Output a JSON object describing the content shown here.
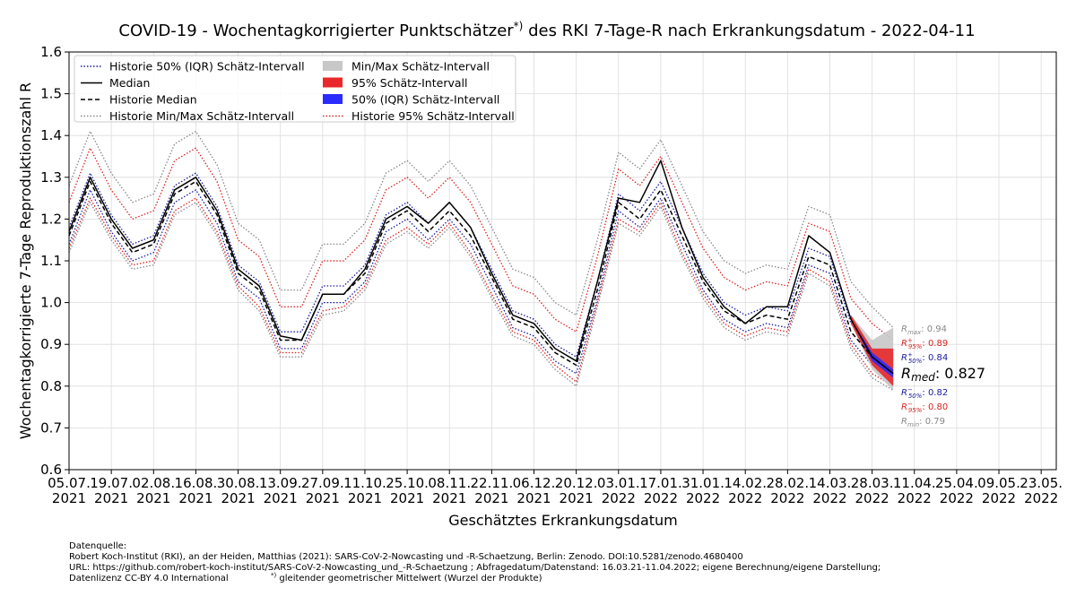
{
  "chart_data": {
    "type": "line",
    "title": "COVID-19 - Wochentagkorrigierter Punktschätzer",
    "title_sup": "*)",
    "title_rest": " des RKI 7-Tage-R nach Erkrankungsdatum - 2022-04-11",
    "xlabel": "Geschätztes Erkrankungsdatum",
    "ylabel": "Wochentagkorrigierte 7-Tage Reproduktionszahl R",
    "xlim": [
      "2021-07-05",
      "2022-05-28"
    ],
    "ylim": [
      0.6,
      1.6
    ],
    "yticks": [
      0.6,
      0.7,
      0.8,
      0.9,
      {
        "value": 1,
        "label": "1.0"
      },
      1.1,
      1.2,
      1.3,
      1.4,
      1.5,
      1.6
    ],
    "xticks": [
      {
        "value": "2021-07-05",
        "label": "05.07.\n2021"
      },
      {
        "value": "2021-07-19",
        "label": "19.07.\n2021"
      },
      {
        "value": "2021-08-02",
        "label": "02.08.\n2021"
      },
      {
        "value": "2021-08-16",
        "label": "16.08.\n2021"
      },
      {
        "value": "2021-08-30",
        "label": "30.08.\n2021"
      },
      {
        "value": "2021-09-13",
        "label": "13.09.\n2021"
      },
      {
        "value": "2021-09-27",
        "label": "27.09.\n2021"
      },
      {
        "value": "2021-10-11",
        "label": "11.10.\n2021"
      },
      {
        "value": "2021-10-25",
        "label": "25.10.\n2021"
      },
      {
        "value": "2021-11-08",
        "label": "08.11.\n2021"
      },
      {
        "value": "2021-11-22",
        "label": "22.11.\n2021"
      },
      {
        "value": "2021-12-06",
        "label": "06.12.\n2021"
      },
      {
        "value": "2021-12-20",
        "label": "20.12.\n2021"
      },
      {
        "value": "2022-01-03",
        "label": "03.01.\n2022"
      },
      {
        "value": "2022-01-17",
        "label": "17.01.\n2022"
      },
      {
        "value": "2022-01-31",
        "label": "31.01.\n2022"
      },
      {
        "value": "2022-02-14",
        "label": "14.02.\n2022"
      },
      {
        "value": "2022-02-28",
        "label": "28.02.\n2022"
      },
      {
        "value": "2022-03-14",
        "label": "14.03.\n2022"
      },
      {
        "value": "2022-03-28",
        "label": "28.03.\n2022"
      },
      {
        "value": "2022-04-11",
        "label": "11.04.\n2022"
      },
      {
        "value": "2022-04-25",
        "label": "25.04.\n2022"
      },
      {
        "value": "2022-05-09",
        "label": "09.05.\n2022"
      },
      {
        "value": "2022-05-23",
        "label": "23.05.\n2022"
      }
    ],
    "grid": true,
    "x": [
      "2021-07-05",
      "2021-07-12",
      "2021-07-19",
      "2021-07-26",
      "2021-08-02",
      "2021-08-09",
      "2021-08-16",
      "2021-08-23",
      "2021-08-30",
      "2021-09-06",
      "2021-09-13",
      "2021-09-20",
      "2021-09-27",
      "2021-10-04",
      "2021-10-11",
      "2021-10-18",
      "2021-10-25",
      "2021-11-01",
      "2021-11-08",
      "2021-11-15",
      "2021-11-22",
      "2021-11-29",
      "2021-12-06",
      "2021-12-13",
      "2021-12-20",
      "2021-12-27",
      "2022-01-03",
      "2022-01-10",
      "2022-01-17",
      "2022-01-24",
      "2022-01-31",
      "2022-02-07",
      "2022-02-14",
      "2022-02-21",
      "2022-02-28",
      "2022-03-07",
      "2022-03-14",
      "2022-03-21",
      "2022-03-28",
      "2022-04-04"
    ],
    "series": [
      {
        "name": "Historie 50% (IQR) Schätz-Intervall",
        "kind": "interval",
        "color": "#1a1aa0",
        "dash": "1.5 2",
        "lower": [
          1.14,
          1.27,
          1.17,
          1.1,
          1.12,
          1.24,
          1.27,
          1.19,
          1.05,
          1.01,
          0.89,
          0.89,
          1.0,
          1.0,
          1.05,
          1.17,
          1.2,
          1.15,
          1.2,
          1.14,
          1.04,
          0.94,
          0.92,
          0.86,
          0.83,
          1.01,
          1.22,
          1.18,
          1.25,
          1.14,
          1.03,
          0.96,
          0.93,
          0.95,
          0.94,
          1.09,
          1.07,
          0.91,
          0.85,
          0.81
        ],
        "upper": [
          1.18,
          1.31,
          1.21,
          1.14,
          1.16,
          1.28,
          1.31,
          1.23,
          1.09,
          1.05,
          0.93,
          0.93,
          1.04,
          1.04,
          1.09,
          1.21,
          1.24,
          1.19,
          1.24,
          1.18,
          1.08,
          0.98,
          0.96,
          0.9,
          0.87,
          1.05,
          1.26,
          1.22,
          1.29,
          1.18,
          1.07,
          1.0,
          0.97,
          0.99,
          0.98,
          1.13,
          1.11,
          0.95,
          0.89,
          0.85
        ]
      },
      {
        "name": "Median",
        "kind": "line",
        "color": "#000000",
        "dash": "none",
        "values": [
          1.17,
          1.3,
          1.2,
          1.13,
          1.15,
          1.27,
          1.3,
          1.22,
          1.08,
          1.04,
          0.92,
          0.91,
          1.02,
          1.02,
          1.08,
          1.2,
          1.23,
          1.19,
          1.24,
          1.18,
          1.07,
          0.97,
          0.95,
          0.89,
          0.86,
          1.05,
          1.25,
          1.24,
          1.34,
          1.18,
          1.06,
          0.99,
          0.95,
          0.99,
          0.99,
          1.16,
          1.12,
          0.96,
          0.87,
          0.83
        ]
      },
      {
        "name": "Historie Median",
        "kind": "line",
        "color": "#000000",
        "dash": "5 3",
        "values": [
          1.16,
          1.29,
          1.19,
          1.12,
          1.14,
          1.26,
          1.29,
          1.21,
          1.07,
          1.03,
          0.91,
          0.91,
          1.02,
          1.02,
          1.07,
          1.19,
          1.22,
          1.17,
          1.22,
          1.16,
          1.06,
          0.96,
          0.94,
          0.88,
          0.85,
          1.03,
          1.24,
          1.2,
          1.27,
          1.16,
          1.05,
          0.98,
          0.95,
          0.97,
          0.96,
          1.11,
          1.09,
          0.93,
          0.87,
          0.83
        ]
      },
      {
        "name": "Historie Min/Max Schätz-Intervall",
        "kind": "interval",
        "color": "#888888",
        "dash": "1.5 2",
        "lower": [
          1.12,
          1.24,
          1.15,
          1.08,
          1.09,
          1.21,
          1.24,
          1.16,
          1.03,
          0.98,
          0.87,
          0.87,
          0.97,
          0.98,
          1.03,
          1.14,
          1.17,
          1.13,
          1.18,
          1.11,
          1.01,
          0.92,
          0.9,
          0.84,
          0.8,
          0.99,
          1.19,
          1.16,
          1.23,
          1.11,
          1.01,
          0.94,
          0.91,
          0.93,
          0.92,
          1.07,
          1.04,
          0.89,
          0.82,
          0.79
        ],
        "upper": [
          1.28,
          1.41,
          1.31,
          1.24,
          1.26,
          1.38,
          1.41,
          1.33,
          1.19,
          1.15,
          1.03,
          1.03,
          1.14,
          1.14,
          1.19,
          1.31,
          1.34,
          1.29,
          1.34,
          1.28,
          1.18,
          1.08,
          1.06,
          1.0,
          0.97,
          1.15,
          1.36,
          1.32,
          1.39,
          1.28,
          1.17,
          1.1,
          1.07,
          1.09,
          1.08,
          1.23,
          1.21,
          1.05,
          0.99,
          0.94
        ]
      },
      {
        "name": "Min/Max Schätz-Intervall",
        "kind": "band",
        "color": "#c8c8c8",
        "x": [
          "2022-03-21",
          "2022-03-28",
          "2022-04-04"
        ],
        "lower": [
          0.95,
          0.84,
          0.79
        ],
        "upper": [
          0.97,
          0.91,
          0.94
        ]
      },
      {
        "name": "95% Schätz-Intervall",
        "kind": "band",
        "color": "#e8282a",
        "x": [
          "2022-03-21",
          "2022-03-28",
          "2022-04-04"
        ],
        "lower": [
          0.95,
          0.85,
          0.8
        ],
        "upper": [
          0.97,
          0.89,
          0.89
        ]
      },
      {
        "name": "50% (IQR) Schätz-Intervall",
        "kind": "band",
        "color": "#2b2bff",
        "x": [
          "2022-03-21",
          "2022-03-28",
          "2022-04-04"
        ],
        "lower": [
          0.96,
          0.86,
          0.82
        ],
        "upper": [
          0.96,
          0.88,
          0.84
        ]
      },
      {
        "name": "Historie 95% Schätz-Intervall",
        "kind": "interval",
        "color": "#dd2222",
        "dash": "1.5 2",
        "lower": [
          1.13,
          1.25,
          1.16,
          1.09,
          1.1,
          1.22,
          1.25,
          1.17,
          1.04,
          0.99,
          0.88,
          0.88,
          0.98,
          0.99,
          1.04,
          1.15,
          1.18,
          1.14,
          1.19,
          1.12,
          1.02,
          0.93,
          0.91,
          0.85,
          0.81,
          1.0,
          1.2,
          1.17,
          1.24,
          1.12,
          1.02,
          0.95,
          0.92,
          0.94,
          0.93,
          1.08,
          1.05,
          0.9,
          0.83,
          0.8
        ],
        "upper": [
          1.24,
          1.37,
          1.27,
          1.2,
          1.22,
          1.34,
          1.37,
          1.29,
          1.15,
          1.11,
          0.99,
          0.99,
          1.1,
          1.1,
          1.15,
          1.27,
          1.3,
          1.25,
          1.3,
          1.24,
          1.14,
          1.04,
          1.02,
          0.96,
          0.93,
          1.11,
          1.32,
          1.28,
          1.35,
          1.24,
          1.13,
          1.06,
          1.03,
          1.05,
          1.04,
          1.19,
          1.17,
          1.01,
          0.95,
          0.91
        ]
      }
    ],
    "annotations": [
      {
        "base": "R",
        "sub": "max",
        "text": ": 0.94",
        "color": "#888888",
        "size": "small"
      },
      {
        "base": "R",
        "sub": "95%",
        "sup": "+",
        "text": ": 0.89",
        "color": "#dd2222",
        "size": "small"
      },
      {
        "base": "R",
        "sub": "50%",
        "sup": "+",
        "text": ": 0.84",
        "color": "#1a1aa0",
        "size": "small"
      },
      {
        "base": "R",
        "sub": "med",
        "text": ": 0.827",
        "color": "#000000",
        "size": "large"
      },
      {
        "base": "R",
        "sub": "50%",
        "sup": "−",
        "text": ": 0.82",
        "color": "#1a1aa0",
        "size": "small"
      },
      {
        "base": "R",
        "sub": "95%",
        "sup": "−",
        "text": ": 0.80",
        "color": "#dd2222",
        "size": "small"
      },
      {
        "base": "R",
        "sub": "min",
        "text": ": 0.79",
        "color": "#888888",
        "size": "small"
      }
    ],
    "footnotes": [
      "Datenquelle:",
      "Robert Koch-Institut (RKI), an der Heiden, Matthias (2021): SARS-CoV-2-Nowcasting und -R-Schaetzung, Berlin: Zenodo. DOI:10.5281/zenodo.4680400",
      "URL: https://github.com/robert-koch-institut/SARS-CoV-2-Nowcasting_und_-R-Schaetzung ; Abfragedatum/Datenstand: 16.03.21-11.04.2022; eigene Berechnung/eigene Darstellung;",
      "Datenlizenz CC-BY 4.0 International"
    ],
    "footnote_sup": "*)",
    "footnote_star": " gleitender geometrischer Mittelwert (Wurzel der Produkte)"
  }
}
